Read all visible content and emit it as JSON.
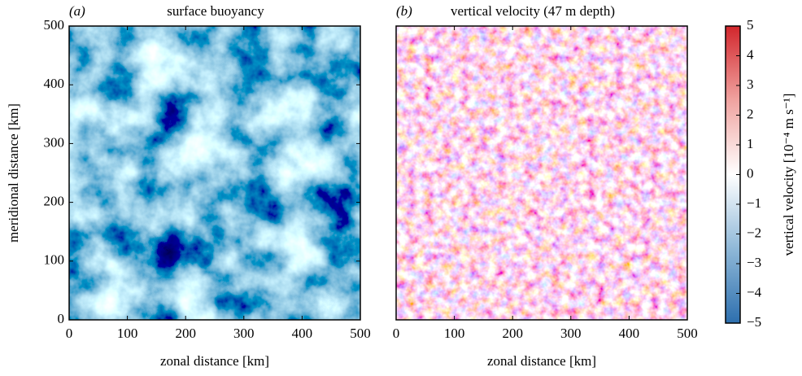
{
  "chart_data": [
    {
      "type": "image",
      "label": "(a)",
      "title": "surface buoyancy",
      "xlabel": "zonal distance [km]",
      "ylabel": "meridional distance [km]",
      "xlim": [
        0,
        500
      ],
      "ylim": [
        0,
        500
      ],
      "xticks": [
        0,
        100,
        200,
        300,
        400,
        500
      ],
      "yticks": [
        0,
        100,
        200,
        300,
        400,
        500
      ]
    },
    {
      "type": "image",
      "label": "(b)",
      "title": "vertical velocity (47 m depth)",
      "xlabel": "zonal distance [km]",
      "xlim": [
        0,
        500
      ],
      "ylim": [
        0,
        500
      ],
      "xticks": [
        0,
        100,
        200,
        300,
        400,
        500
      ],
      "colorbar": {
        "label": "vertical velocity [10⁻⁴ m s⁻¹]",
        "lim": [
          -5,
          5
        ],
        "ticks": [
          {
            "value": -5,
            "label": "−5"
          },
          {
            "value": -4,
            "label": "−4"
          },
          {
            "value": -3,
            "label": "−3"
          },
          {
            "value": -2,
            "label": "−2"
          },
          {
            "value": -1,
            "label": "−1"
          },
          0,
          1,
          2,
          3,
          4,
          5
        ]
      }
    }
  ]
}
